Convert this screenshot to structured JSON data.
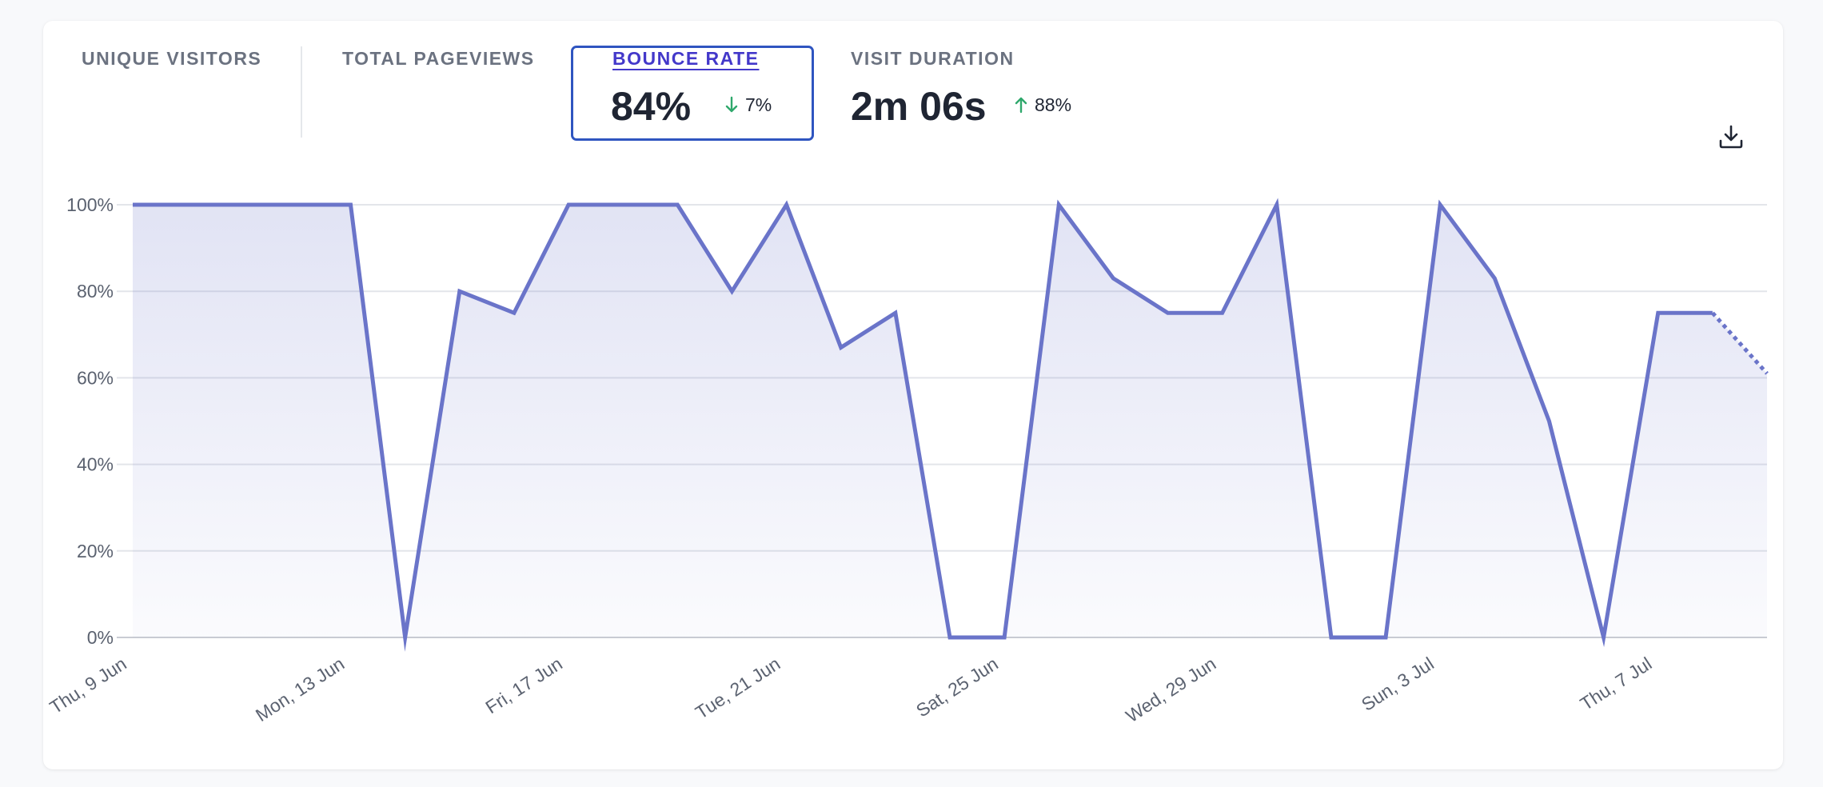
{
  "stats": [
    {
      "label": "UNIQUE VISITORS"
    },
    {
      "label": "TOTAL PAGEVIEWS"
    },
    {
      "label": "BOUNCE RATE",
      "value": "84%",
      "change": "7%",
      "direction": "down",
      "selected": true
    },
    {
      "label": "VISIT DURATION",
      "value": "2m 06s",
      "change": "88%",
      "direction": "up"
    }
  ],
  "colors": {
    "line": "#6a74c9",
    "selected_border": "#2f55c0",
    "selected_label": "#4338ca",
    "arrow_green": "#2fa86c"
  },
  "icons": {
    "download": "download-icon",
    "change_down": "arrow-down-icon",
    "change_up": "arrow-up-icon"
  },
  "chart_data": {
    "type": "line",
    "ylim": [
      0,
      100
    ],
    "y_ticks": [
      "0%",
      "20%",
      "40%",
      "60%",
      "80%",
      "100%"
    ],
    "x_tick_labels": [
      "Thu, 9 Jun",
      "Mon, 13 Jun",
      "Fri, 17 Jun",
      "Tue, 21 Jun",
      "Sat, 25 Jun",
      "Wed, 29 Jun",
      "Sun, 3 Jul",
      "Thu, 7 Jul"
    ],
    "x_tick_index": [
      0,
      4,
      8,
      12,
      16,
      20,
      24,
      28
    ],
    "dates": [
      "9 Jun",
      "10 Jun",
      "11 Jun",
      "12 Jun",
      "13 Jun",
      "14 Jun",
      "15 Jun",
      "16 Jun",
      "17 Jun",
      "18 Jun",
      "19 Jun",
      "20 Jun",
      "21 Jun",
      "22 Jun",
      "23 Jun",
      "24 Jun",
      "25 Jun",
      "26 Jun",
      "27 Jun",
      "28 Jun",
      "29 Jun",
      "30 Jun",
      "1 Jul",
      "2 Jul",
      "3 Jul",
      "4 Jul",
      "5 Jul",
      "6 Jul",
      "7 Jul",
      "8 Jul",
      "9 Jul"
    ],
    "values": [
      100,
      100,
      100,
      100,
      100,
      0,
      80,
      75,
      100,
      100,
      100,
      80,
      100,
      67,
      75,
      0,
      0,
      100,
      83,
      75,
      75,
      100,
      0,
      0,
      100,
      83,
      50,
      0,
      75,
      75,
      61
    ],
    "dotted_last_segment": true,
    "grid": true
  }
}
